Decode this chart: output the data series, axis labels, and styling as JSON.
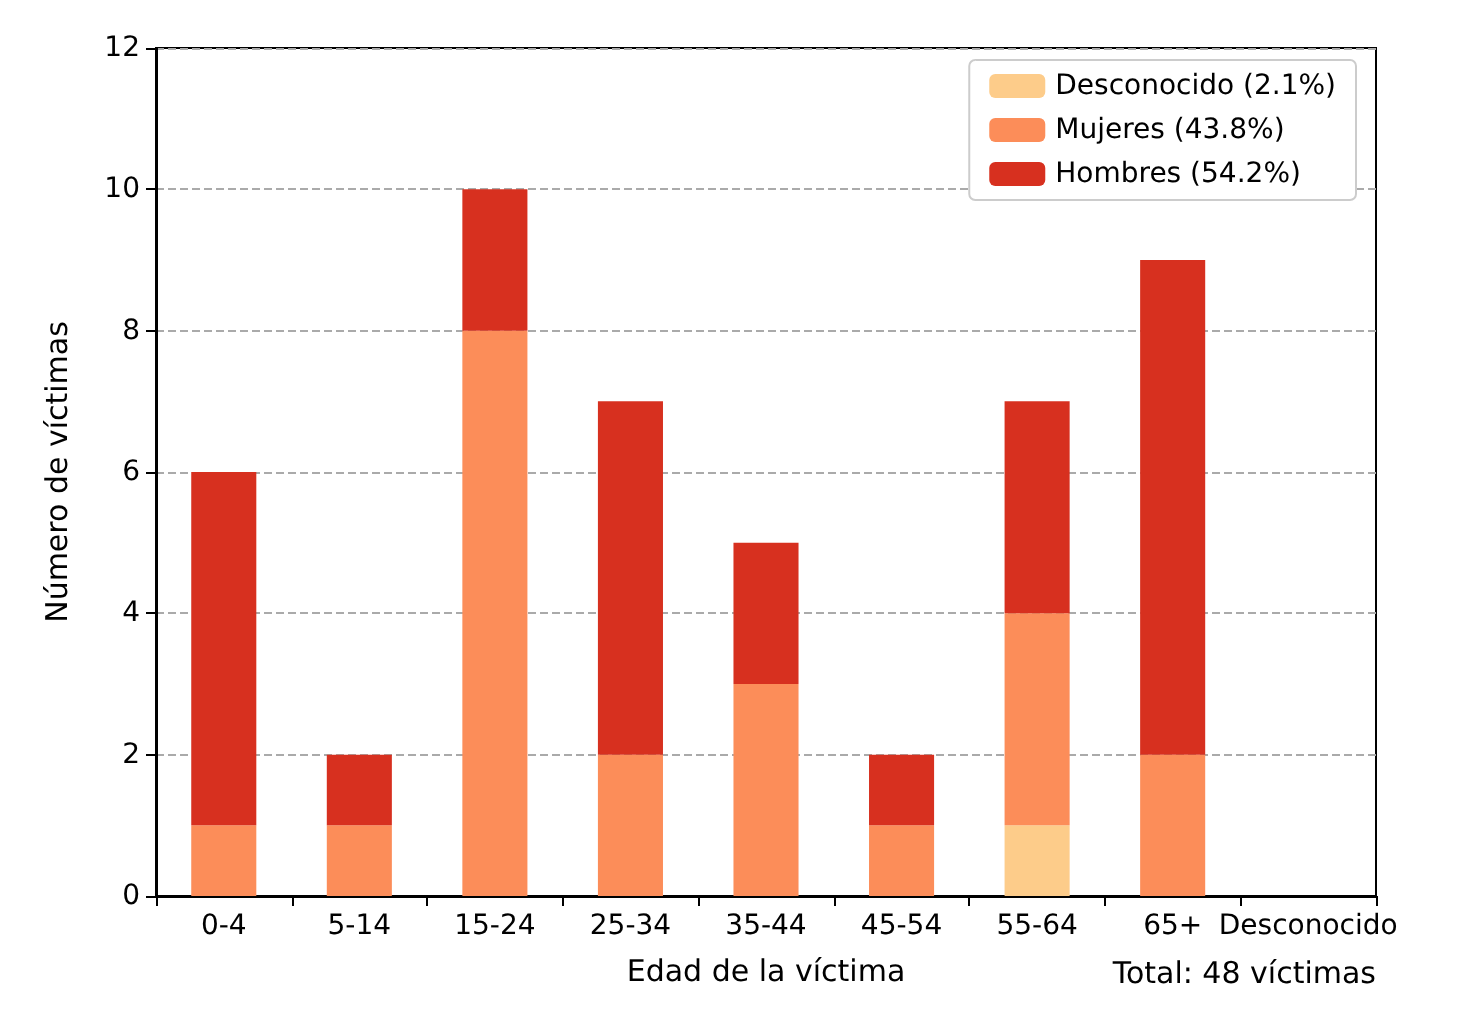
{
  "chart_data": {
    "type": "bar",
    "stacked": true,
    "xlabel": "Edad de la víctima",
    "ylabel": "Número de víctimas",
    "categories": [
      "0-4",
      "5-14",
      "15-24",
      "25-34",
      "35-44",
      "45-54",
      "55-64",
      "65+",
      "Desconocido"
    ],
    "series": [
      {
        "name": "Desconocido (2.1%)",
        "color": "#fdcc8a",
        "values": [
          0,
          0,
          0,
          0,
          0,
          0,
          1,
          0,
          0
        ]
      },
      {
        "name": "Mujeres (43.8%)",
        "color": "#fc8d59",
        "values": [
          1,
          1,
          8,
          2,
          3,
          1,
          3,
          2,
          0
        ]
      },
      {
        "name": "Hombres (54.2%)",
        "color": "#d7301f",
        "values": [
          5,
          1,
          2,
          5,
          2,
          1,
          3,
          7,
          0
        ]
      }
    ],
    "ylim": [
      0,
      12
    ],
    "yticks": [
      0,
      2,
      4,
      6,
      8,
      10,
      12
    ],
    "grid": "y",
    "legend": "top right",
    "annotations": [
      "Total: 48 víctimas"
    ]
  }
}
